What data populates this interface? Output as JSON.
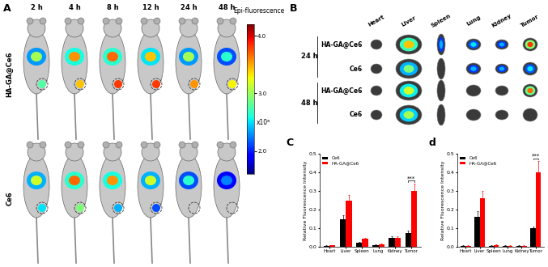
{
  "chart_data": [
    {
      "type": "bar",
      "title": "C",
      "ylabel": "Relative Fluorescence Intensity",
      "categories": [
        "Heart",
        "Liver",
        "Spleen",
        "Lung",
        "Kidney",
        "Tumor"
      ],
      "series": [
        {
          "name": "Ce6",
          "color": "#000000",
          "values": [
            0.005,
            0.15,
            0.02,
            0.01,
            0.05,
            0.075
          ],
          "errors": [
            0.002,
            0.02,
            0.005,
            0.003,
            0.005,
            0.01
          ]
        },
        {
          "name": "HA-GA@Ce6",
          "color": "#ff0000",
          "values": [
            0.008,
            0.25,
            0.045,
            0.015,
            0.05,
            0.3
          ],
          "errors": [
            0.002,
            0.03,
            0.005,
            0.003,
            0.005,
            0.04
          ]
        }
      ],
      "ylim": [
        0,
        0.5
      ],
      "yticks": [
        {
          "value": 0,
          "label": "0.0"
        },
        {
          "value": 0.1,
          "label": "0.1"
        },
        {
          "value": 0.2,
          "label": "0.2"
        },
        {
          "value": 0.3,
          "label": "0.3"
        },
        {
          "value": 0.4,
          "label": "0.4"
        },
        {
          "value": 0.5,
          "label": "0.5"
        }
      ],
      "legend": "upper left",
      "annotations": [
        {
          "text": "***",
          "category": "Tumor"
        }
      ]
    },
    {
      "type": "bar",
      "title": "d",
      "ylabel": "Relative Fluorescence Intensity",
      "categories": [
        "Heart",
        "Liver",
        "Spleen",
        "Lung",
        "Kidney",
        "Tumor"
      ],
      "series": [
        {
          "name": "Ce6",
          "color": "#000000",
          "values": [
            0.005,
            0.16,
            0.005,
            0.005,
            0.005,
            0.1
          ],
          "errors": [
            0.002,
            0.03,
            0.002,
            0.002,
            0.002,
            0.01
          ]
        },
        {
          "name": "HA-GA@Ce6",
          "color": "#ff0000",
          "values": [
            0.005,
            0.26,
            0.01,
            0.005,
            0.005,
            0.4
          ],
          "errors": [
            0.002,
            0.04,
            0.003,
            0.002,
            0.002,
            0.06
          ]
        }
      ],
      "ylim": [
        0,
        0.5
      ],
      "yticks": [
        {
          "value": 0,
          "label": "0.0"
        },
        {
          "value": 0.1,
          "label": "0.1"
        },
        {
          "value": 0.2,
          "label": "0.2"
        },
        {
          "value": 0.3,
          "label": "0.3"
        },
        {
          "value": 0.4,
          "label": "0.4"
        },
        {
          "value": 0.5,
          "label": "0.5"
        }
      ],
      "legend": "upper left",
      "annotations": [
        {
          "text": "***",
          "category": "Tumor"
        }
      ]
    }
  ],
  "panels": {
    "A": {
      "label": "A",
      "times": [
        "2 h",
        "4 h",
        "8 h",
        "12 h",
        "24 h",
        "48 h"
      ],
      "groups": [
        "HA-GA@Ce6",
        "Ce6"
      ],
      "colorbar": {
        "title": "Epi-fluorescence",
        "range": [
          1.6,
          4.2
        ],
        "ticks": [
          {
            "value": 2.0,
            "label": "2.0"
          },
          {
            "value": 3.0,
            "label": "3.0"
          },
          {
            "value": 4.0,
            "label": "4.0"
          }
        ],
        "multiplier": "x10⁸"
      }
    },
    "B": {
      "label": "B",
      "organs": [
        "Heart",
        "Liver",
        "Spleen",
        "Lung",
        "Kidney",
        "Tumor"
      ],
      "rows": [
        {
          "time": "24 h",
          "groups": [
            "HA-GA@Ce6",
            "Ce6"
          ]
        },
        {
          "time": "48 h",
          "groups": [
            "HA-GA@Ce6",
            "Ce6"
          ]
        }
      ]
    }
  }
}
